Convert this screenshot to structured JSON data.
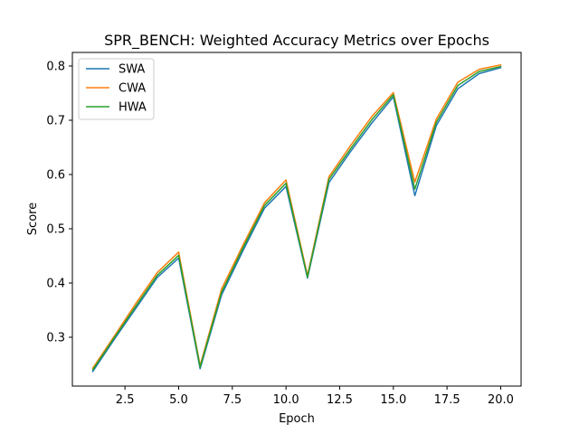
{
  "chart_data": {
    "type": "line",
    "title": "SPR_BENCH: Weighted Accuracy Metrics over Epochs",
    "xlabel": "Epoch",
    "ylabel": "Score",
    "xlim": [
      0.05,
      20.95
    ],
    "ylim": [
      0.21,
      0.825
    ],
    "xticks": [
      2.5,
      5.0,
      7.5,
      10.0,
      12.5,
      15.0,
      17.5,
      20.0
    ],
    "xtick_labels": [
      "2.5",
      "5.0",
      "7.5",
      "10.0",
      "12.5",
      "15.0",
      "17.5",
      "20.0"
    ],
    "yticks": [
      0.3,
      0.4,
      0.5,
      0.6,
      0.7,
      0.8
    ],
    "ytick_labels": [
      "0.3",
      "0.4",
      "0.5",
      "0.6",
      "0.7",
      "0.8"
    ],
    "grid": false,
    "legend_position": "upper-left",
    "x": [
      1,
      2,
      3,
      4,
      5,
      6,
      7,
      8,
      9,
      10,
      11,
      12,
      13,
      14,
      15,
      16,
      17,
      18,
      19,
      20
    ],
    "series": [
      {
        "name": "SWA",
        "color": "#1f77b4",
        "values": [
          0.237,
          0.296,
          0.353,
          0.41,
          0.446,
          0.242,
          0.378,
          0.46,
          0.538,
          0.578,
          0.409,
          0.585,
          0.642,
          0.695,
          0.743,
          0.561,
          0.69,
          0.758,
          0.786,
          0.797
        ]
      },
      {
        "name": "CWA",
        "color": "#ff7f0e",
        "values": [
          0.243,
          0.302,
          0.362,
          0.419,
          0.457,
          0.248,
          0.389,
          0.47,
          0.548,
          0.59,
          0.414,
          0.596,
          0.653,
          0.707,
          0.751,
          0.586,
          0.702,
          0.77,
          0.794,
          0.802
        ]
      },
      {
        "name": "HWA",
        "color": "#2ca02c",
        "values": [
          0.24,
          0.299,
          0.357,
          0.414,
          0.451,
          0.245,
          0.383,
          0.465,
          0.543,
          0.584,
          0.411,
          0.591,
          0.647,
          0.701,
          0.747,
          0.573,
          0.696,
          0.764,
          0.79,
          0.799
        ]
      }
    ]
  }
}
